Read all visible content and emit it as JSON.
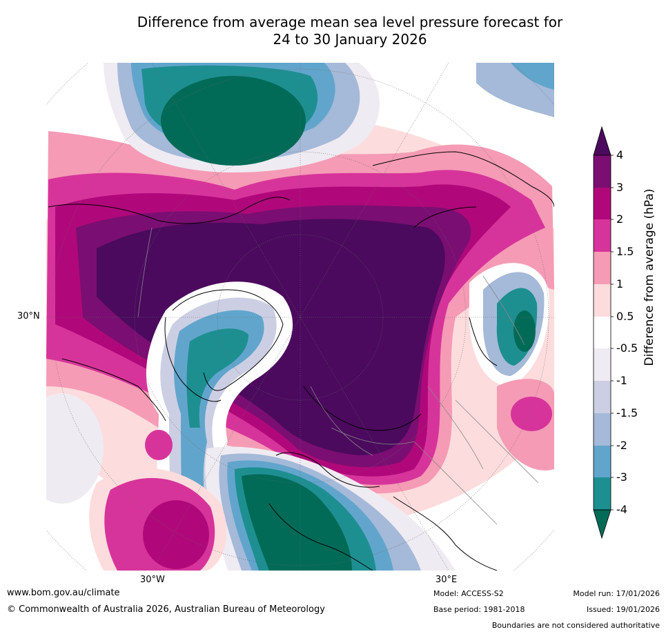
{
  "title": {
    "line1": "Difference from average mean sea level pressure forecast for",
    "line2": "24 to 30 January 2026"
  },
  "map": {
    "projection": "north-polar-stereographic",
    "lat_labels": [
      "30°N"
    ],
    "lon_labels": [
      "30°W",
      "30°E"
    ]
  },
  "colorbar": {
    "label": "Difference from average (hPa)",
    "ticks": [
      "4",
      "3",
      "2",
      "1.5",
      "1",
      "0.5",
      "-0.5",
      "-1",
      "-1.5",
      "-2",
      "-3",
      "-4"
    ],
    "colors": [
      "#4b0a5e",
      "#7b0e72",
      "#b0087a",
      "#d7349b",
      "#f59bb5",
      "#fddcdd",
      "#ffffff",
      "#efebf2",
      "#cccfe3",
      "#a5b9d8",
      "#62a5cc",
      "#1e8f91",
      "#026b58"
    ]
  },
  "footer": {
    "website": "www.bom.gov.au/climate",
    "copyright": "© Commonwealth of Australia 2026, Australian Bureau of Meteorology",
    "model": "Model: ACCESS-S2",
    "base_period": "Base period: 1981-2018",
    "model_run": "Model run: 17/01/2026",
    "issued": "Issued: 19/01/2026",
    "boundaries_note": "Boundaries are not considered authoritative"
  }
}
